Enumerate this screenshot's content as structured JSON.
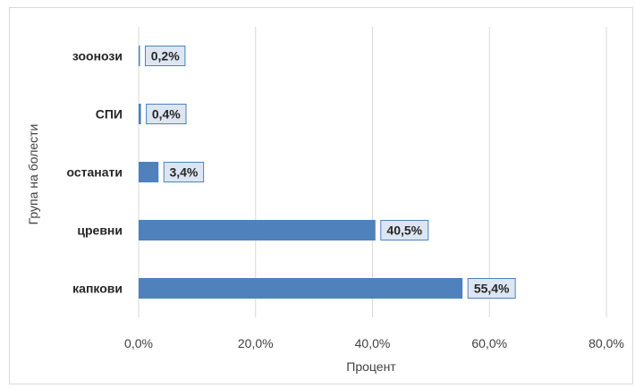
{
  "chart_data": {
    "type": "bar",
    "orientation": "horizontal",
    "categories": [
      "капкови",
      "цревни",
      "останати",
      "СПИ",
      "зоонози"
    ],
    "values": [
      55.4,
      40.5,
      3.4,
      0.4,
      0.2
    ],
    "data_labels": [
      "55,4%",
      "40,5%",
      "3,4%",
      "0,4%",
      "0,2%"
    ],
    "xlabel": "Процент",
    "ylabel": "Група на болести",
    "xlim": [
      0,
      80
    ],
    "xticks": [
      0,
      20,
      40,
      60,
      80
    ],
    "xtick_labels": [
      "0,0%",
      "20,0%",
      "40,0%",
      "60,0%",
      "80,0%"
    ],
    "grid": true,
    "legend": "none",
    "colors": {
      "bar": "#4f81bd",
      "label_fill": "#dce6f2",
      "label_border": "#4f81bd",
      "grid": "#d9d9d9"
    }
  }
}
